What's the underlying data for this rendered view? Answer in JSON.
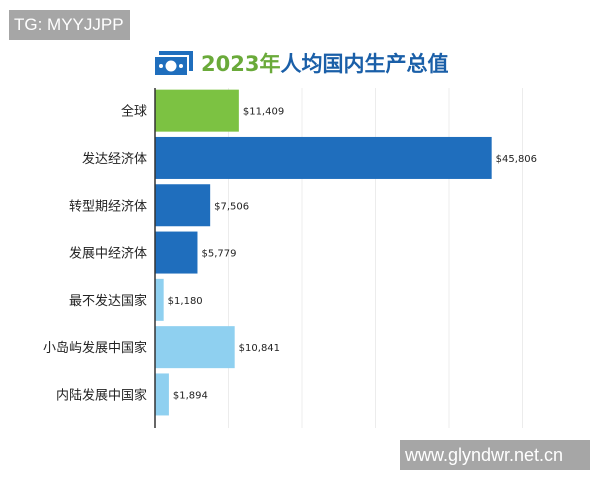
{
  "watermarks": {
    "top_left": "TG: MYYJJPP",
    "bottom_right": "www.glyndwr.net.cn"
  },
  "chart_data": {
    "type": "bar",
    "orientation": "horizontal",
    "title_year": "2023年",
    "title_rest": "人均国内生产总值",
    "categories": [
      "全球",
      "发达经济体",
      "转型期经济体",
      "发展中经济体",
      "最不发达国家",
      "小岛屿发展中国家",
      "内陆发展中国家"
    ],
    "values": [
      11409,
      45806,
      7506,
      5779,
      1180,
      10841,
      1894
    ],
    "value_labels": [
      "$11,409",
      "$45,806",
      "$7,506",
      "$5,779",
      "$1,180",
      "$10,841",
      "$1,894"
    ],
    "colors": [
      "#7cc242",
      "#1f6ebd",
      "#1f6ebd",
      "#1f6ebd",
      "#8fd0f0",
      "#8fd0f0",
      "#8fd0f0"
    ],
    "xlim": [
      0,
      55000
    ],
    "grid": true,
    "title_colors": {
      "year": "#6aaa3a",
      "rest": "#1a5fa8"
    },
    "icon": "money-bill-icon"
  }
}
